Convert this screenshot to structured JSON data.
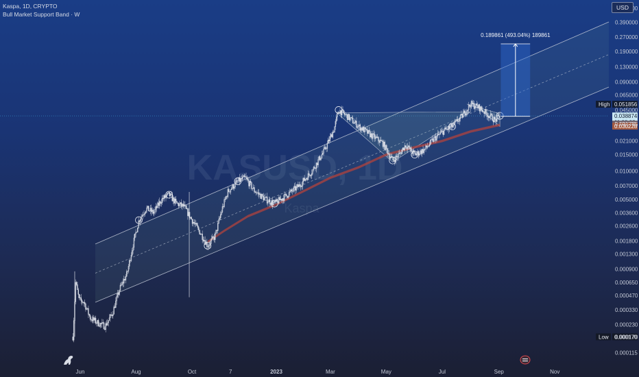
{
  "header": {
    "symbol_line": "Kaspa, 1D, CRYPTO",
    "indicator_line": "Bull Market Support Band · W",
    "currency": "USD"
  },
  "watermark": {
    "ticker": "KASUSD, 1D",
    "name": "Kaspa"
  },
  "measure_label": "0.189861 (493.04%) 189861",
  "colors": {
    "candle": "#d9dde6",
    "channel": "#c8cedb",
    "band": "#b0433e",
    "price_line": "#3aa0d8",
    "measure": "#2f6ad0",
    "last_price_bg": "#c9e6f2",
    "band_bg_1": "#6f5f68",
    "band_bg_2": "#a35a41"
  },
  "icons": {
    "brand": "dinosaur-logo-icon",
    "nav": "scroll-to-latest-icon"
  },
  "chart_data": {
    "type": "candlestick",
    "title": "Kaspa, 1D, CRYPTO",
    "xlabel": "",
    "ylabel": "",
    "y_scale": "log",
    "ylim": [
      0.000105,
      0.65
    ],
    "grid": false,
    "legend": "none",
    "x_ticks": [
      "Jun",
      "Aug",
      "Oct",
      "7",
      "2023",
      "Mar",
      "May",
      "Jul",
      "Sep",
      "Nov"
    ],
    "y_ticks": [
      "0.550000",
      "0.390000",
      "0.270000",
      "0.190000",
      "0.130000",
      "0.090000",
      "0.065000",
      "0.045000",
      "0.031785",
      "0.021000",
      "0.015000",
      "0.010000",
      "0.007000",
      "0.005000",
      "0.003600",
      "0.002600",
      "0.001800",
      "0.001300",
      "0.000900",
      "0.000650",
      "0.000470",
      "0.000330",
      "0.000230",
      "0.000170",
      "0.000115"
    ],
    "price_tags": [
      {
        "label": "High",
        "value": 0.051856,
        "text": "0.051856",
        "style": "plain"
      },
      {
        "label": "",
        "value": 0.038874,
        "text": "0.038874",
        "style": "last"
      },
      {
        "label": "",
        "value": 0.038874,
        "text": "11:08:08",
        "style": "countdown"
      },
      {
        "label": "",
        "value": 0.031785,
        "text": "0.031785",
        "style": "band1"
      },
      {
        "label": "",
        "value": 0.030228,
        "text": "0.030228",
        "style": "band2"
      },
      {
        "label": "Low",
        "value": 0.00017,
        "text": "0.000170",
        "style": "plain"
      }
    ],
    "series": [
      {
        "name": "Kaspa",
        "points": [
          [
            "2022-05-24",
            0.00017
          ],
          [
            "2022-05-27",
            0.00065
          ],
          [
            "2022-05-31",
            0.00042
          ],
          [
            "2022-06-05",
            0.0004
          ],
          [
            "2022-06-12",
            0.00027
          ],
          [
            "2022-06-20",
            0.00024
          ],
          [
            "2022-06-28",
            0.00022
          ],
          [
            "2022-07-06",
            0.0003
          ],
          [
            "2022-07-14",
            0.00055
          ],
          [
            "2022-07-22",
            0.0008
          ],
          [
            "2022-07-29",
            0.0017
          ],
          [
            "2022-08-04",
            0.003
          ],
          [
            "2022-08-12",
            0.004
          ],
          [
            "2022-08-20",
            0.0036
          ],
          [
            "2022-08-29",
            0.005
          ],
          [
            "2022-09-06",
            0.0056
          ],
          [
            "2022-09-14",
            0.0045
          ],
          [
            "2022-09-22",
            0.0042
          ],
          [
            "2022-10-01",
            0.003
          ],
          [
            "2022-10-10",
            0.0022
          ],
          [
            "2022-10-18",
            0.0016
          ],
          [
            "2022-10-26",
            0.002
          ],
          [
            "2022-11-03",
            0.004
          ],
          [
            "2022-11-09",
            0.006
          ],
          [
            "2022-11-20",
            0.0078
          ],
          [
            "2022-11-28",
            0.0085
          ],
          [
            "2022-12-08",
            0.0062
          ],
          [
            "2022-12-20",
            0.005
          ],
          [
            "2022-12-30",
            0.0045
          ],
          [
            "2023-01-12",
            0.0055
          ],
          [
            "2023-01-26",
            0.007
          ],
          [
            "2023-02-09",
            0.01
          ],
          [
            "2023-02-23",
            0.017
          ],
          [
            "2023-03-05",
            0.028
          ],
          [
            "2023-03-10",
            0.045
          ],
          [
            "2023-03-20",
            0.038
          ],
          [
            "2023-04-01",
            0.03
          ],
          [
            "2023-04-15",
            0.024
          ],
          [
            "2023-04-27",
            0.02
          ],
          [
            "2023-05-08",
            0.013
          ],
          [
            "2023-05-15",
            0.015
          ],
          [
            "2023-05-22",
            0.019
          ],
          [
            "2023-06-01",
            0.015
          ],
          [
            "2023-06-12",
            0.017
          ],
          [
            "2023-06-22",
            0.022
          ],
          [
            "2023-07-03",
            0.027
          ],
          [
            "2023-07-12",
            0.03
          ],
          [
            "2023-07-22",
            0.038
          ],
          [
            "2023-08-01",
            0.052
          ],
          [
            "2023-08-10",
            0.048
          ],
          [
            "2023-08-20",
            0.04
          ],
          [
            "2023-08-28",
            0.035
          ],
          [
            "2023-09-02",
            0.039
          ]
        ]
      },
      {
        "name": "Bull Market Support Band",
        "points": [
          [
            "2022-10-18",
            0.00175
          ],
          [
            "2022-11-05",
            0.0023
          ],
          [
            "2022-12-01",
            0.0033
          ],
          [
            "2023-01-01",
            0.0044
          ],
          [
            "2023-02-01",
            0.0062
          ],
          [
            "2023-03-01",
            0.0085
          ],
          [
            "2023-04-01",
            0.011
          ],
          [
            "2023-05-01",
            0.015
          ],
          [
            "2023-06-01",
            0.018
          ],
          [
            "2023-07-01",
            0.021
          ],
          [
            "2023-08-01",
            0.0265
          ],
          [
            "2023-09-02",
            0.0312
          ]
        ]
      }
    ],
    "annotations": {
      "measure": {
        "from_date": "2023-09-03",
        "to_date": "2023-10-05",
        "from_value": 0.0385,
        "to_value": 0.2285,
        "text": "0.189861 (493.04%) 189861"
      },
      "circled_points": [
        "2022-08-04",
        "2022-09-06",
        "2022-10-18",
        "2022-11-20",
        "2022-12-30",
        "2023-03-10",
        "2023-05-08",
        "2023-06-01",
        "2023-07-12",
        "2023-09-02"
      ]
    }
  }
}
